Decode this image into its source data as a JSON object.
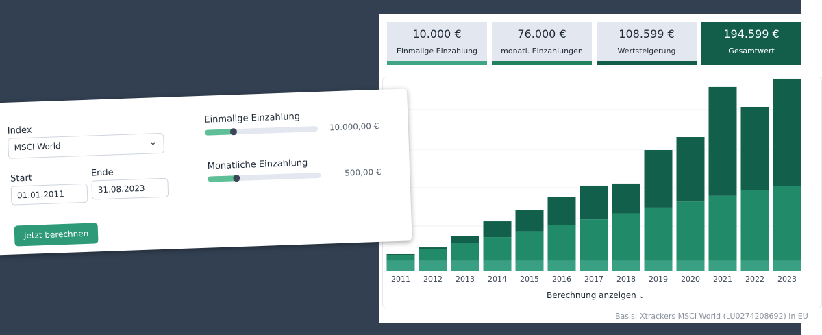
{
  "form": {
    "index_label": "Index",
    "index_value": "MSCI World",
    "start_label": "Start",
    "start_value": "01.01.2011",
    "end_label": "Ende",
    "end_value": "31.08.2023",
    "one_time_label": "Einmalige Einzahlung",
    "one_time_value": "10.000,00 €",
    "monthly_label": "Monatliche Einzahlung",
    "monthly_value": "500,00 €",
    "button": "Jetzt berechnen"
  },
  "summary": [
    {
      "value": "10.000 €",
      "label": "Einmalige Einzahlung"
    },
    {
      "value": "76.000 €",
      "label": "monatl. Einzahlungen"
    },
    {
      "value": "108.599 €",
      "label": "Wertsteigerung"
    },
    {
      "value": "194.599 €",
      "label": "Gesamtwert"
    }
  ],
  "chart_data": {
    "type": "bar",
    "stacked": true,
    "categories": [
      "2011",
      "2012",
      "2013",
      "2014",
      "2015",
      "2016",
      "2017",
      "2018",
      "2019",
      "2020",
      "2021",
      "2022",
      "2023"
    ],
    "series": [
      {
        "color": "#3aa083",
        "values": [
          10000,
          10000,
          10000,
          10000,
          10000,
          10000,
          10000,
          10000,
          10000,
          10000,
          10000,
          10000,
          10000
        ]
      },
      {
        "color": "#218a68",
        "values": [
          6000,
          12000,
          18000,
          24000,
          30000,
          36000,
          42000,
          48000,
          54000,
          60000,
          66000,
          72000,
          76000
        ]
      },
      {
        "color": "#12604b",
        "values": [
          700,
          1600,
          7400,
          16000,
          21200,
          28400,
          34200,
          30300,
          58300,
          65500,
          110300,
          84100,
          108599
        ]
      }
    ]
  },
  "details_link": "Berechnung anzeigen",
  "source": "Basis: Xtrackers MSCI World (LU0274208692) in EU"
}
